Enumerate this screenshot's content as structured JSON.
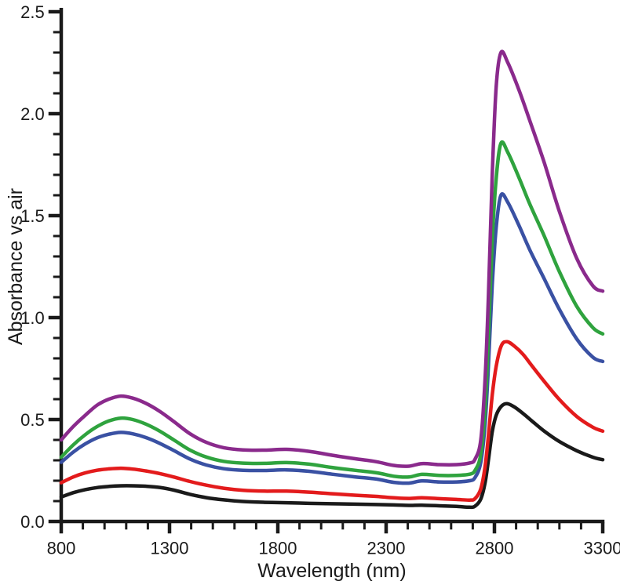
{
  "chart_data": {
    "type": "line",
    "title": "",
    "xlabel": "Wavelength (nm)",
    "ylabel": "Absorbance vs air",
    "xlim": [
      800,
      3300
    ],
    "ylim": [
      0.0,
      2.5
    ],
    "x_major_ticks": [
      800,
      1300,
      1800,
      2300,
      2800,
      3300
    ],
    "x_minor_step": 100,
    "y_major_ticks": [
      0.0,
      0.5,
      1.0,
      1.5,
      2.0,
      2.5
    ],
    "y_minor_step": 0.1,
    "grid": false,
    "legend": "none",
    "background": "#ffffff",
    "axis_color": "#1a1a1a",
    "x_tick_labels": [
      "800",
      "1300",
      "1800",
      "2300",
      "2800",
      "3300"
    ],
    "y_tick_labels": [
      "0.0",
      "0.5",
      "1.0",
      "1.5",
      "2.0",
      "2.5"
    ],
    "series": [
      {
        "name": "black",
        "color": "#1a1a1a",
        "peak_nm": 2858,
        "peak_absorbance": 0.58,
        "points": [
          [
            800,
            0.12
          ],
          [
            855,
            0.141
          ],
          [
            910,
            0.156
          ],
          [
            965,
            0.166
          ],
          [
            1020,
            0.172
          ],
          [
            1075,
            0.175
          ],
          [
            1130,
            0.175
          ],
          [
            1190,
            0.173
          ],
          [
            1255,
            0.167
          ],
          [
            1320,
            0.154
          ],
          [
            1395,
            0.133
          ],
          [
            1470,
            0.117
          ],
          [
            1550,
            0.106
          ],
          [
            1640,
            0.098
          ],
          [
            1740,
            0.094
          ],
          [
            1840,
            0.092
          ],
          [
            1945,
            0.089
          ],
          [
            2050,
            0.087
          ],
          [
            2155,
            0.085
          ],
          [
            2255,
            0.083
          ],
          [
            2335,
            0.081
          ],
          [
            2405,
            0.079
          ],
          [
            2465,
            0.08
          ],
          [
            2545,
            0.077
          ],
          [
            2625,
            0.074
          ],
          [
            2685,
            0.07
          ],
          [
            2710,
            0.075
          ],
          [
            2737,
            0.11
          ],
          [
            2757,
            0.19
          ],
          [
            2772,
            0.3
          ],
          [
            2790,
            0.44
          ],
          [
            2808,
            0.52
          ],
          [
            2832,
            0.565
          ],
          [
            2858,
            0.578
          ],
          [
            2892,
            0.562
          ],
          [
            2932,
            0.53
          ],
          [
            2972,
            0.494
          ],
          [
            3030,
            0.443
          ],
          [
            3100,
            0.392
          ],
          [
            3180,
            0.347
          ],
          [
            3255,
            0.315
          ],
          [
            3300,
            0.303
          ]
        ]
      },
      {
        "name": "red",
        "color": "#e31b1c",
        "peak_nm": 2858,
        "peak_absorbance": 0.88,
        "points": [
          [
            800,
            0.19
          ],
          [
            855,
            0.218
          ],
          [
            910,
            0.238
          ],
          [
            965,
            0.251
          ],
          [
            1020,
            0.258
          ],
          [
            1075,
            0.261
          ],
          [
            1130,
            0.257
          ],
          [
            1190,
            0.248
          ],
          [
            1255,
            0.235
          ],
          [
            1320,
            0.218
          ],
          [
            1395,
            0.196
          ],
          [
            1470,
            0.178
          ],
          [
            1550,
            0.163
          ],
          [
            1640,
            0.153
          ],
          [
            1740,
            0.149
          ],
          [
            1840,
            0.149
          ],
          [
            1945,
            0.144
          ],
          [
            2050,
            0.136
          ],
          [
            2155,
            0.129
          ],
          [
            2255,
            0.123
          ],
          [
            2335,
            0.116
          ],
          [
            2405,
            0.113
          ],
          [
            2465,
            0.116
          ],
          [
            2545,
            0.112
          ],
          [
            2625,
            0.108
          ],
          [
            2685,
            0.105
          ],
          [
            2710,
            0.112
          ],
          [
            2737,
            0.16
          ],
          [
            2757,
            0.27
          ],
          [
            2772,
            0.42
          ],
          [
            2790,
            0.62
          ],
          [
            2808,
            0.76
          ],
          [
            2832,
            0.862
          ],
          [
            2858,
            0.882
          ],
          [
            2892,
            0.86
          ],
          [
            2932,
            0.82
          ],
          [
            2972,
            0.765
          ],
          [
            3030,
            0.687
          ],
          [
            3100,
            0.598
          ],
          [
            3180,
            0.515
          ],
          [
            3255,
            0.462
          ],
          [
            3300,
            0.443
          ]
        ]
      },
      {
        "name": "blue",
        "color": "#3a51a3",
        "peak_nm": 2830,
        "peak_absorbance": 1.6,
        "points": [
          [
            800,
            0.29
          ],
          [
            855,
            0.34
          ],
          [
            910,
            0.38
          ],
          [
            965,
            0.41
          ],
          [
            1020,
            0.428
          ],
          [
            1075,
            0.437
          ],
          [
            1130,
            0.43
          ],
          [
            1190,
            0.412
          ],
          [
            1255,
            0.383
          ],
          [
            1320,
            0.348
          ],
          [
            1395,
            0.306
          ],
          [
            1470,
            0.277
          ],
          [
            1550,
            0.259
          ],
          [
            1640,
            0.251
          ],
          [
            1740,
            0.25
          ],
          [
            1840,
            0.253
          ],
          [
            1945,
            0.246
          ],
          [
            2050,
            0.232
          ],
          [
            2155,
            0.219
          ],
          [
            2255,
            0.208
          ],
          [
            2335,
            0.192
          ],
          [
            2405,
            0.188
          ],
          [
            2465,
            0.199
          ],
          [
            2545,
            0.194
          ],
          [
            2625,
            0.194
          ],
          [
            2685,
            0.2
          ],
          [
            2710,
            0.215
          ],
          [
            2737,
            0.29
          ],
          [
            2757,
            0.48
          ],
          [
            2772,
            0.76
          ],
          [
            2790,
            1.16
          ],
          [
            2808,
            1.44
          ],
          [
            2830,
            1.6
          ],
          [
            2862,
            1.565
          ],
          [
            2912,
            1.455
          ],
          [
            2962,
            1.335
          ],
          [
            3030,
            1.19
          ],
          [
            3100,
            1.04
          ],
          [
            3180,
            0.895
          ],
          [
            3255,
            0.805
          ],
          [
            3300,
            0.785
          ]
        ]
      },
      {
        "name": "green",
        "color": "#2fa33e",
        "peak_nm": 2830,
        "peak_absorbance": 1.86,
        "points": [
          [
            800,
            0.315
          ],
          [
            855,
            0.375
          ],
          [
            910,
            0.425
          ],
          [
            965,
            0.465
          ],
          [
            1020,
            0.493
          ],
          [
            1075,
            0.507
          ],
          [
            1130,
            0.5
          ],
          [
            1190,
            0.478
          ],
          [
            1255,
            0.443
          ],
          [
            1320,
            0.4
          ],
          [
            1395,
            0.35
          ],
          [
            1470,
            0.316
          ],
          [
            1550,
            0.295
          ],
          [
            1640,
            0.286
          ],
          [
            1740,
            0.285
          ],
          [
            1840,
            0.289
          ],
          [
            1945,
            0.281
          ],
          [
            2050,
            0.265
          ],
          [
            2155,
            0.251
          ],
          [
            2255,
            0.239
          ],
          [
            2335,
            0.222
          ],
          [
            2405,
            0.218
          ],
          [
            2465,
            0.231
          ],
          [
            2545,
            0.226
          ],
          [
            2625,
            0.226
          ],
          [
            2685,
            0.232
          ],
          [
            2710,
            0.25
          ],
          [
            2737,
            0.33
          ],
          [
            2757,
            0.56
          ],
          [
            2772,
            0.9
          ],
          [
            2790,
            1.38
          ],
          [
            2808,
            1.68
          ],
          [
            2830,
            1.855
          ],
          [
            2862,
            1.81
          ],
          [
            2912,
            1.69
          ],
          [
            2962,
            1.56
          ],
          [
            3030,
            1.4
          ],
          [
            3100,
            1.225
          ],
          [
            3180,
            1.055
          ],
          [
            3255,
            0.95
          ],
          [
            3300,
            0.92
          ]
        ]
      },
      {
        "name": "purple",
        "color": "#8a2a8c",
        "peak_nm": 2830,
        "peak_absorbance": 2.3,
        "points": [
          [
            800,
            0.4
          ],
          [
            855,
            0.465
          ],
          [
            910,
            0.52
          ],
          [
            965,
            0.57
          ],
          [
            1020,
            0.6
          ],
          [
            1075,
            0.615
          ],
          [
            1130,
            0.605
          ],
          [
            1190,
            0.58
          ],
          [
            1255,
            0.54
          ],
          [
            1320,
            0.49
          ],
          [
            1395,
            0.43
          ],
          [
            1470,
            0.388
          ],
          [
            1550,
            0.362
          ],
          [
            1640,
            0.351
          ],
          [
            1740,
            0.35
          ],
          [
            1840,
            0.354
          ],
          [
            1945,
            0.344
          ],
          [
            2050,
            0.325
          ],
          [
            2155,
            0.308
          ],
          [
            2255,
            0.293
          ],
          [
            2335,
            0.275
          ],
          [
            2405,
            0.271
          ],
          [
            2465,
            0.284
          ],
          [
            2545,
            0.279
          ],
          [
            2625,
            0.279
          ],
          [
            2685,
            0.287
          ],
          [
            2710,
            0.305
          ],
          [
            2737,
            0.4
          ],
          [
            2757,
            0.7
          ],
          [
            2772,
            1.1
          ],
          [
            2790,
            1.7
          ],
          [
            2808,
            2.13
          ],
          [
            2830,
            2.3
          ],
          [
            2862,
            2.25
          ],
          [
            2912,
            2.12
          ],
          [
            2962,
            1.97
          ],
          [
            3030,
            1.76
          ],
          [
            3100,
            1.52
          ],
          [
            3180,
            1.29
          ],
          [
            3255,
            1.155
          ],
          [
            3300,
            1.13
          ]
        ]
      }
    ]
  }
}
